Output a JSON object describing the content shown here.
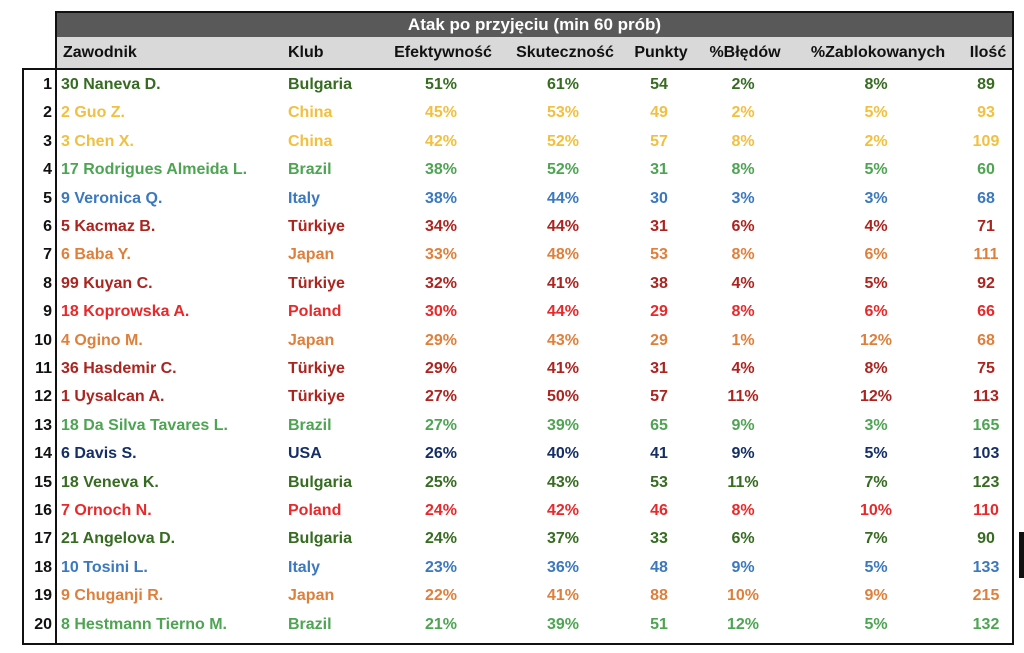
{
  "title": "Atak po przyjęciu (min 60 prób)",
  "headers": {
    "player": "Zawodnik",
    "club": "Klub",
    "efficiency": "Efektywność",
    "success": "Skuteczność",
    "points": "Punkty",
    "errors": "%Błędów",
    "blocked": "%Zablokowanych",
    "count": "Ilość"
  },
  "team_colors": {
    "Bulgaria": "#376b22",
    "China": "#f2c040",
    "Brazil": "#4ea453",
    "Italy": "#3b78be",
    "Türkiye": "#ab2420",
    "Japan": "#de7f3b",
    "Poland": "#e8282a",
    "USA": "#142e66"
  },
  "rows": [
    {
      "rank": "1",
      "player": "30 Naneva D.",
      "club": "Bulgaria",
      "efficiency": "51%",
      "success": "61%",
      "points": "54",
      "errors": "2%",
      "blocked": "8%",
      "count": "89"
    },
    {
      "rank": "2",
      "player": "2 Guo Z.",
      "club": "China",
      "efficiency": "45%",
      "success": "53%",
      "points": "49",
      "errors": "2%",
      "blocked": "5%",
      "count": "93"
    },
    {
      "rank": "3",
      "player": "3 Chen X.",
      "club": "China",
      "efficiency": "42%",
      "success": "52%",
      "points": "57",
      "errors": "8%",
      "blocked": "2%",
      "count": "109"
    },
    {
      "rank": "4",
      "player": "17 Rodrigues Almeida L.",
      "club": "Brazil",
      "efficiency": "38%",
      "success": "52%",
      "points": "31",
      "errors": "8%",
      "blocked": "5%",
      "count": "60"
    },
    {
      "rank": "5",
      "player": "9 Veronica Q.",
      "club": "Italy",
      "efficiency": "38%",
      "success": "44%",
      "points": "30",
      "errors": "3%",
      "blocked": "3%",
      "count": "68"
    },
    {
      "rank": "6",
      "player": "5 Kacmaz B.",
      "club": "Türkiye",
      "efficiency": "34%",
      "success": "44%",
      "points": "31",
      "errors": "6%",
      "blocked": "4%",
      "count": "71"
    },
    {
      "rank": "7",
      "player": "6 Baba Y.",
      "club": "Japan",
      "efficiency": "33%",
      "success": "48%",
      "points": "53",
      "errors": "8%",
      "blocked": "6%",
      "count": "111"
    },
    {
      "rank": "8",
      "player": "99 Kuyan C.",
      "club": "Türkiye",
      "efficiency": "32%",
      "success": "41%",
      "points": "38",
      "errors": "4%",
      "blocked": "5%",
      "count": "92"
    },
    {
      "rank": "9",
      "player": "18 Koprowska A.",
      "club": "Poland",
      "efficiency": "30%",
      "success": "44%",
      "points": "29",
      "errors": "8%",
      "blocked": "6%",
      "count": "66"
    },
    {
      "rank": "10",
      "player": "4 Ogino M.",
      "club": "Japan",
      "efficiency": "29%",
      "success": "43%",
      "points": "29",
      "errors": "1%",
      "blocked": "12%",
      "count": "68"
    },
    {
      "rank": "11",
      "player": "36 Hasdemir C.",
      "club": "Türkiye",
      "efficiency": "29%",
      "success": "41%",
      "points": "31",
      "errors": "4%",
      "blocked": "8%",
      "count": "75"
    },
    {
      "rank": "12",
      "player": "1 Uysalcan A.",
      "club": "Türkiye",
      "efficiency": "27%",
      "success": "50%",
      "points": "57",
      "errors": "11%",
      "blocked": "12%",
      "count": "113"
    },
    {
      "rank": "13",
      "player": "18 Da Silva Tavares L.",
      "club": "Brazil",
      "efficiency": "27%",
      "success": "39%",
      "points": "65",
      "errors": "9%",
      "blocked": "3%",
      "count": "165"
    },
    {
      "rank": "14",
      "player": "6 Davis S.",
      "club": "USA",
      "efficiency": "26%",
      "success": "40%",
      "points": "41",
      "errors": "9%",
      "blocked": "5%",
      "count": "103"
    },
    {
      "rank": "15",
      "player": "18 Veneva K.",
      "club": "Bulgaria",
      "efficiency": "25%",
      "success": "43%",
      "points": "53",
      "errors": "11%",
      "blocked": "7%",
      "count": "123"
    },
    {
      "rank": "16",
      "player": "7 Ornoch N.",
      "club": "Poland",
      "efficiency": "24%",
      "success": "42%",
      "points": "46",
      "errors": "8%",
      "blocked": "10%",
      "count": "110"
    },
    {
      "rank": "17",
      "player": "21 Angelova D.",
      "club": "Bulgaria",
      "efficiency": "24%",
      "success": "37%",
      "points": "33",
      "errors": "6%",
      "blocked": "7%",
      "count": "90"
    },
    {
      "rank": "18",
      "player": "10 Tosini L.",
      "club": "Italy",
      "efficiency": "23%",
      "success": "36%",
      "points": "48",
      "errors": "9%",
      "blocked": "5%",
      "count": "133"
    },
    {
      "rank": "19",
      "player": "9 Chuganji R.",
      "club": "Japan",
      "efficiency": "22%",
      "success": "41%",
      "points": "88",
      "errors": "10%",
      "blocked": "9%",
      "count": "215"
    },
    {
      "rank": "20",
      "player": "8 Hestmann Tierno M.",
      "club": "Brazil",
      "efficiency": "21%",
      "success": "39%",
      "points": "51",
      "errors": "12%",
      "blocked": "5%",
      "count": "132"
    }
  ]
}
